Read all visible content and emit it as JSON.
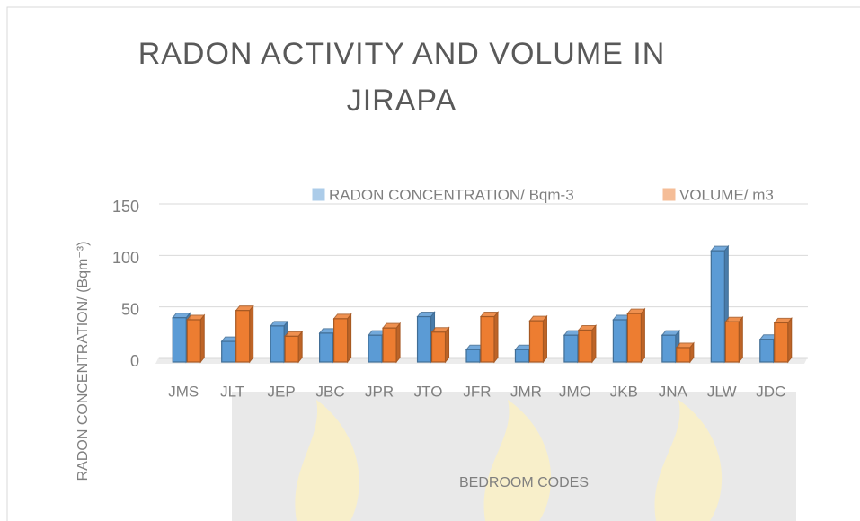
{
  "chart_data": {
    "type": "bar",
    "title": [
      "RADON ACTIVITY AND VOLUME IN",
      "JIRAPA"
    ],
    "x_label": "BEDROOM CODES",
    "y_label": "RADON CONCENTRATION/ (Bqm⁻³)",
    "categories": [
      "JMS",
      "JLT",
      "JEP",
      "JBC",
      "JPR",
      "JTO",
      "JFR",
      "JMR",
      "JMO",
      "JKB",
      "JNA",
      "JLW",
      "JDC"
    ],
    "series": [
      {
        "name": "RADON CONCENTRATION/ Bqm-3",
        "color": "#5b9bd5",
        "values": [
          43,
          20,
          35,
          28,
          26,
          44,
          12,
          12,
          26,
          41,
          26,
          108,
          22
        ]
      },
      {
        "name": "VOLUME/ m3",
        "color": "#ed7d31",
        "values": [
          41,
          50,
          25,
          42,
          33,
          29,
          44,
          40,
          31,
          47,
          14,
          39,
          38
        ]
      }
    ],
    "ylim": [
      0,
      150
    ],
    "yticks": [
      0,
      50,
      100,
      150
    ],
    "grid": true,
    "legend": "top"
  }
}
